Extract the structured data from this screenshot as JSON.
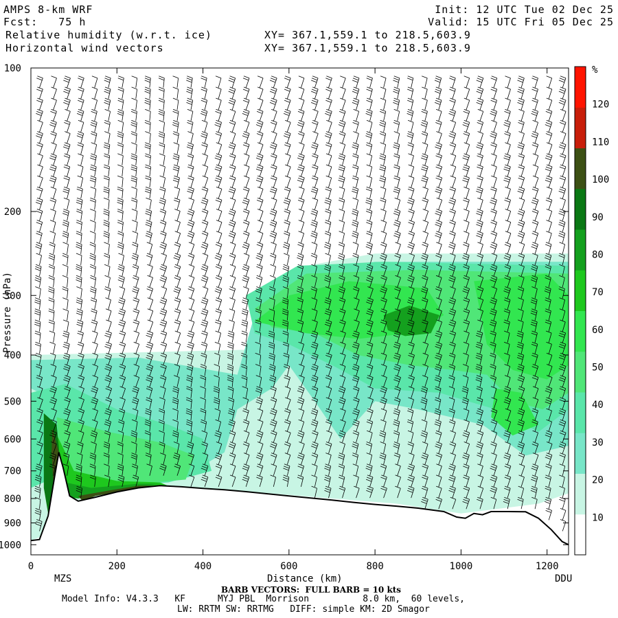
{
  "header": {
    "model": "AMPS 8-km WRF",
    "forecast": "Fcst:   75 h",
    "field1": "Relative humidity (w.r.t. ice)",
    "field2": "Horizontal wind vectors",
    "init": "Init: 12 UTC Tue 02 Dec 25",
    "valid": "Valid: 15 UTC Fri 05 Dec 25",
    "xy1": "XY= 367.1,559.1 to 218.5,603.9",
    "xy2": "XY= 367.1,559.1 to 218.5,603.9"
  },
  "footer": {
    "barb": "BARB VECTORS:  FULL BARB = 10 kts",
    "model_info": "Model Info: V4.3.3   KF      MYJ PBL  Morrison          8.0 km,  60 levels,",
    "physics": "LW: RRTM SW: RRTMG   DIFF: simple KM: 2D Smagor"
  },
  "chart_data": {
    "type": "heatmap",
    "title": "Relative humidity (w.r.t. ice)",
    "xlabel": "Distance (km)",
    "ylabel": "Pressure (hPa)",
    "x_ticks": [
      "0",
      "200",
      "400",
      "600",
      "800",
      "1000",
      "1200"
    ],
    "y_ticks": [
      "100",
      "200",
      "300",
      "400",
      "500",
      "600",
      "700",
      "800",
      "900",
      "1000"
    ],
    "xlim": [
      0,
      1250
    ],
    "ylim": [
      1050,
      100
    ],
    "y_scale": "log",
    "endpoint_labels": {
      "left": "MZS",
      "right": "DDU"
    },
    "colorbar": {
      "unit": "%",
      "tick_labels": [
        "10",
        "20",
        "30",
        "40",
        "50",
        "60",
        "70",
        "80",
        "90",
        "100",
        "110",
        "120"
      ],
      "bins": [
        {
          "range": [
            0,
            30
          ],
          "color": "#ffffff"
        },
        {
          "range": [
            30,
            40
          ],
          "color": "#c8f5e4"
        },
        {
          "range": [
            40,
            50
          ],
          "color": "#78e6c8"
        },
        {
          "range": [
            50,
            60
          ],
          "color": "#5ae6aa"
        },
        {
          "range": [
            60,
            70
          ],
          "color": "#50e678"
        },
        {
          "range": [
            70,
            80
          ],
          "color": "#32e650"
        },
        {
          "range": [
            80,
            90
          ],
          "color": "#1ec81e"
        },
        {
          "range": [
            90,
            100
          ],
          "color": "#14a01e"
        },
        {
          "range": [
            100,
            110
          ],
          "color": "#0a7814"
        },
        {
          "range": [
            110,
            120
          ],
          "color": "#3c5014"
        },
        {
          "range": [
            120,
            130
          ],
          "color": "#c81e0a"
        },
        {
          "range": [
            130,
            140
          ],
          "color": "#ff1400"
        }
      ]
    },
    "terrain_pressure": [
      {
        "x": 0,
        "p": 980
      },
      {
        "x": 20,
        "p": 975
      },
      {
        "x": 40,
        "p": 870
      },
      {
        "x": 55,
        "p": 720
      },
      {
        "x": 65,
        "p": 640
      },
      {
        "x": 75,
        "p": 690
      },
      {
        "x": 90,
        "p": 790
      },
      {
        "x": 110,
        "p": 810
      },
      {
        "x": 150,
        "p": 795
      },
      {
        "x": 200,
        "p": 775
      },
      {
        "x": 250,
        "p": 760
      },
      {
        "x": 300,
        "p": 752
      },
      {
        "x": 350,
        "p": 756
      },
      {
        "x": 400,
        "p": 762
      },
      {
        "x": 450,
        "p": 767
      },
      {
        "x": 500,
        "p": 774
      },
      {
        "x": 550,
        "p": 782
      },
      {
        "x": 600,
        "p": 790
      },
      {
        "x": 650,
        "p": 798
      },
      {
        "x": 700,
        "p": 806
      },
      {
        "x": 750,
        "p": 815
      },
      {
        "x": 800,
        "p": 823
      },
      {
        "x": 850,
        "p": 830
      },
      {
        "x": 900,
        "p": 838
      },
      {
        "x": 930,
        "p": 845
      },
      {
        "x": 960,
        "p": 852
      },
      {
        "x": 990,
        "p": 875
      },
      {
        "x": 1010,
        "p": 880
      },
      {
        "x": 1030,
        "p": 860
      },
      {
        "x": 1050,
        "p": 865
      },
      {
        "x": 1070,
        "p": 852
      },
      {
        "x": 1110,
        "p": 852
      },
      {
        "x": 1150,
        "p": 853
      },
      {
        "x": 1180,
        "p": 880
      },
      {
        "x": 1210,
        "p": 930
      },
      {
        "x": 1235,
        "p": 985
      },
      {
        "x": 1250,
        "p": 1000
      }
    ],
    "rh_regions": [
      {
        "level": 35,
        "points": [
          [
            0,
            400
          ],
          [
            500,
            390
          ],
          [
            560,
            330
          ],
          [
            640,
            260
          ],
          [
            800,
            245
          ],
          [
            1250,
            245
          ],
          [
            1250,
            780
          ],
          [
            1180,
            820
          ],
          [
            1000,
            860
          ],
          [
            850,
            820
          ],
          [
            700,
            800
          ],
          [
            400,
            760
          ],
          [
            150,
            800
          ],
          [
            40,
            950
          ],
          [
            0,
            980
          ]
        ]
      },
      {
        "level": 45,
        "points": [
          [
            0,
            410
          ],
          [
            250,
            405
          ],
          [
            480,
            440
          ],
          [
            520,
            330
          ],
          [
            620,
            270
          ],
          [
            800,
            255
          ],
          [
            1250,
            255
          ],
          [
            1250,
            620
          ],
          [
            1150,
            650
          ],
          [
            1050,
            560
          ],
          [
            900,
            520
          ],
          [
            800,
            500
          ],
          [
            720,
            600
          ],
          [
            660,
            500
          ],
          [
            600,
            420
          ],
          [
            560,
            470
          ],
          [
            480,
            520
          ],
          [
            450,
            640
          ],
          [
            380,
            700
          ],
          [
            300,
            720
          ],
          [
            150,
            740
          ],
          [
            60,
            500
          ],
          [
            0,
            470
          ]
        ]
      },
      {
        "level": 55,
        "points": [
          [
            0,
            480
          ],
          [
            80,
            460
          ],
          [
            200,
            520
          ],
          [
            320,
            560
          ],
          [
            400,
            600
          ],
          [
            420,
            700
          ],
          [
            320,
            740
          ],
          [
            150,
            760
          ],
          [
            60,
            720
          ],
          [
            0,
            760
          ]
        ]
      },
      {
        "level": 55,
        "points": [
          [
            500,
            300
          ],
          [
            620,
            260
          ],
          [
            820,
            255
          ],
          [
            1250,
            260
          ],
          [
            1250,
            520
          ],
          [
            1180,
            580
          ],
          [
            1080,
            520
          ],
          [
            950,
            480
          ],
          [
            800,
            470
          ],
          [
            700,
            420
          ],
          [
            600,
            380
          ],
          [
            520,
            360
          ]
        ]
      },
      {
        "level": 65,
        "points": [
          [
            60,
            540
          ],
          [
            180,
            580
          ],
          [
            300,
            610
          ],
          [
            380,
            650
          ],
          [
            360,
            730
          ],
          [
            250,
            745
          ],
          [
            130,
            760
          ],
          [
            70,
            700
          ]
        ]
      },
      {
        "level": 65,
        "points": [
          [
            520,
            320
          ],
          [
            640,
            270
          ],
          [
            900,
            265
          ],
          [
            1250,
            270
          ],
          [
            1250,
            480
          ],
          [
            1190,
            520
          ],
          [
            1120,
            500
          ],
          [
            1060,
            440
          ],
          [
            980,
            430
          ],
          [
            880,
            420
          ],
          [
            760,
            400
          ],
          [
            660,
            360
          ],
          [
            560,
            350
          ]
        ]
      },
      {
        "level": 75,
        "points": [
          [
            520,
            340
          ],
          [
            600,
            300
          ],
          [
            740,
            280
          ],
          [
            920,
            290
          ],
          [
            960,
            330
          ],
          [
            880,
            360
          ],
          [
            760,
            370
          ],
          [
            640,
            360
          ]
        ]
      },
      {
        "level": 75,
        "points": [
          [
            1030,
            280
          ],
          [
            1200,
            270
          ],
          [
            1250,
            300
          ],
          [
            1250,
            420
          ],
          [
            1200,
            450
          ],
          [
            1120,
            430
          ],
          [
            1060,
            380
          ]
        ]
      },
      {
        "level": 75,
        "points": [
          [
            1080,
            470
          ],
          [
            1140,
            480
          ],
          [
            1180,
            560
          ],
          [
            1120,
            590
          ],
          [
            1070,
            540
          ]
        ]
      },
      {
        "level": 85,
        "points": [
          [
            40,
            540
          ],
          [
            80,
            640
          ],
          [
            100,
            700
          ],
          [
            200,
            735
          ],
          [
            300,
            740
          ],
          [
            330,
            760
          ],
          [
            200,
            770
          ],
          [
            100,
            790
          ],
          [
            60,
            780
          ],
          [
            30,
            700
          ]
        ]
      },
      {
        "level": 95,
        "points": [
          [
            820,
            330
          ],
          [
            880,
            315
          ],
          [
            950,
            330
          ],
          [
            930,
            360
          ],
          [
            870,
            365
          ],
          [
            830,
            355
          ]
        ]
      },
      {
        "level": 95,
        "points": [
          [
            60,
            620
          ],
          [
            80,
            740
          ],
          [
            140,
            760
          ],
          [
            250,
            745
          ],
          [
            300,
            745
          ],
          [
            200,
            770
          ],
          [
            110,
            800
          ],
          [
            60,
            790
          ],
          [
            40,
            720
          ]
        ]
      },
      {
        "level": 105,
        "points": [
          [
            30,
            530
          ],
          [
            60,
            560
          ],
          [
            70,
            700
          ],
          [
            55,
            820
          ],
          [
            40,
            860
          ],
          [
            30,
            760
          ]
        ]
      },
      {
        "level": 115,
        "points": [
          [
            50,
            570
          ],
          [
            65,
            640
          ],
          [
            62,
            760
          ],
          [
            52,
            740
          ],
          [
            48,
            640
          ]
        ]
      },
      {
        "level": 115,
        "points": [
          [
            110,
            790
          ],
          [
            180,
            770
          ],
          [
            250,
            752
          ],
          [
            300,
            752
          ],
          [
            220,
            770
          ],
          [
            150,
            790
          ],
          [
            120,
            810
          ]
        ]
      }
    ]
  }
}
